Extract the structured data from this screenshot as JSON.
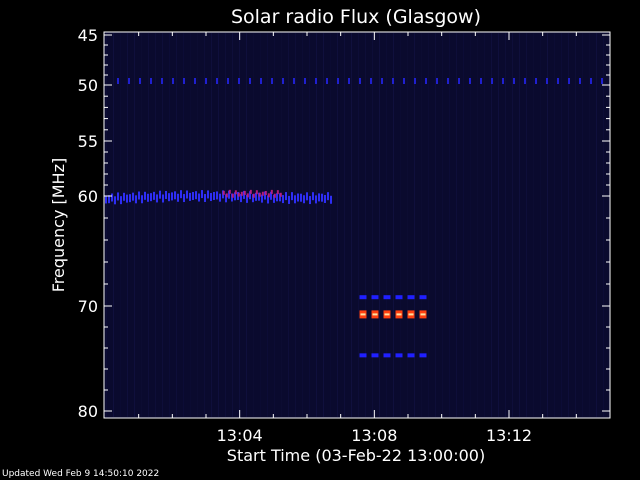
{
  "updated_text": "Updated Wed Feb  9 14:50:10 2022",
  "chart_data": {
    "type": "heatmap",
    "title": "Solar radio Flux (Glasgow)",
    "xlabel": "Start Time (03-Feb-22 13:00:00)",
    "ylabel": "Frequency [MHz]",
    "xlim": [
      0,
      15
    ],
    "ylim": [
      45,
      80
    ],
    "y_inverted": true,
    "x_ticks": [
      {
        "v": 4,
        "label": "13:04"
      },
      {
        "v": 8,
        "label": "13:08"
      },
      {
        "v": 12,
        "label": "13:12"
      }
    ],
    "y_ticks": [
      {
        "v": 45,
        "label": "45"
      },
      {
        "v": 50,
        "label": "50"
      },
      {
        "v": 55,
        "label": "55"
      },
      {
        "v": 60,
        "label": "60"
      },
      {
        "v": 70,
        "label": "70"
      },
      {
        "v": 80,
        "label": "80"
      }
    ],
    "background_color": "#0a0a2e",
    "features": [
      {
        "name": "persistent-49mhz-line",
        "x_range": [
          0,
          15
        ],
        "freq": 49.6,
        "color": "#2020d0"
      },
      {
        "name": "band-60mhz",
        "x_range": [
          0,
          6.7
        ],
        "freq": 60.2,
        "color": "#3030ff"
      },
      {
        "name": "band-60mhz-intense",
        "x_range": [
          3.5,
          5.2
        ],
        "freq": 59.8,
        "color": "#c02080"
      },
      {
        "name": "band-69mhz",
        "x_range": [
          7.5,
          9.5
        ],
        "freq": 69.2,
        "color": "#2020ff"
      },
      {
        "name": "band-71mhz-hot",
        "x_range": [
          7.5,
          9.5
        ],
        "freq": 70.8,
        "color": "#ff4010"
      },
      {
        "name": "band-74mhz",
        "x_range": [
          7.5,
          9.5
        ],
        "freq": 74.7,
        "color": "#2020ff"
      }
    ]
  }
}
